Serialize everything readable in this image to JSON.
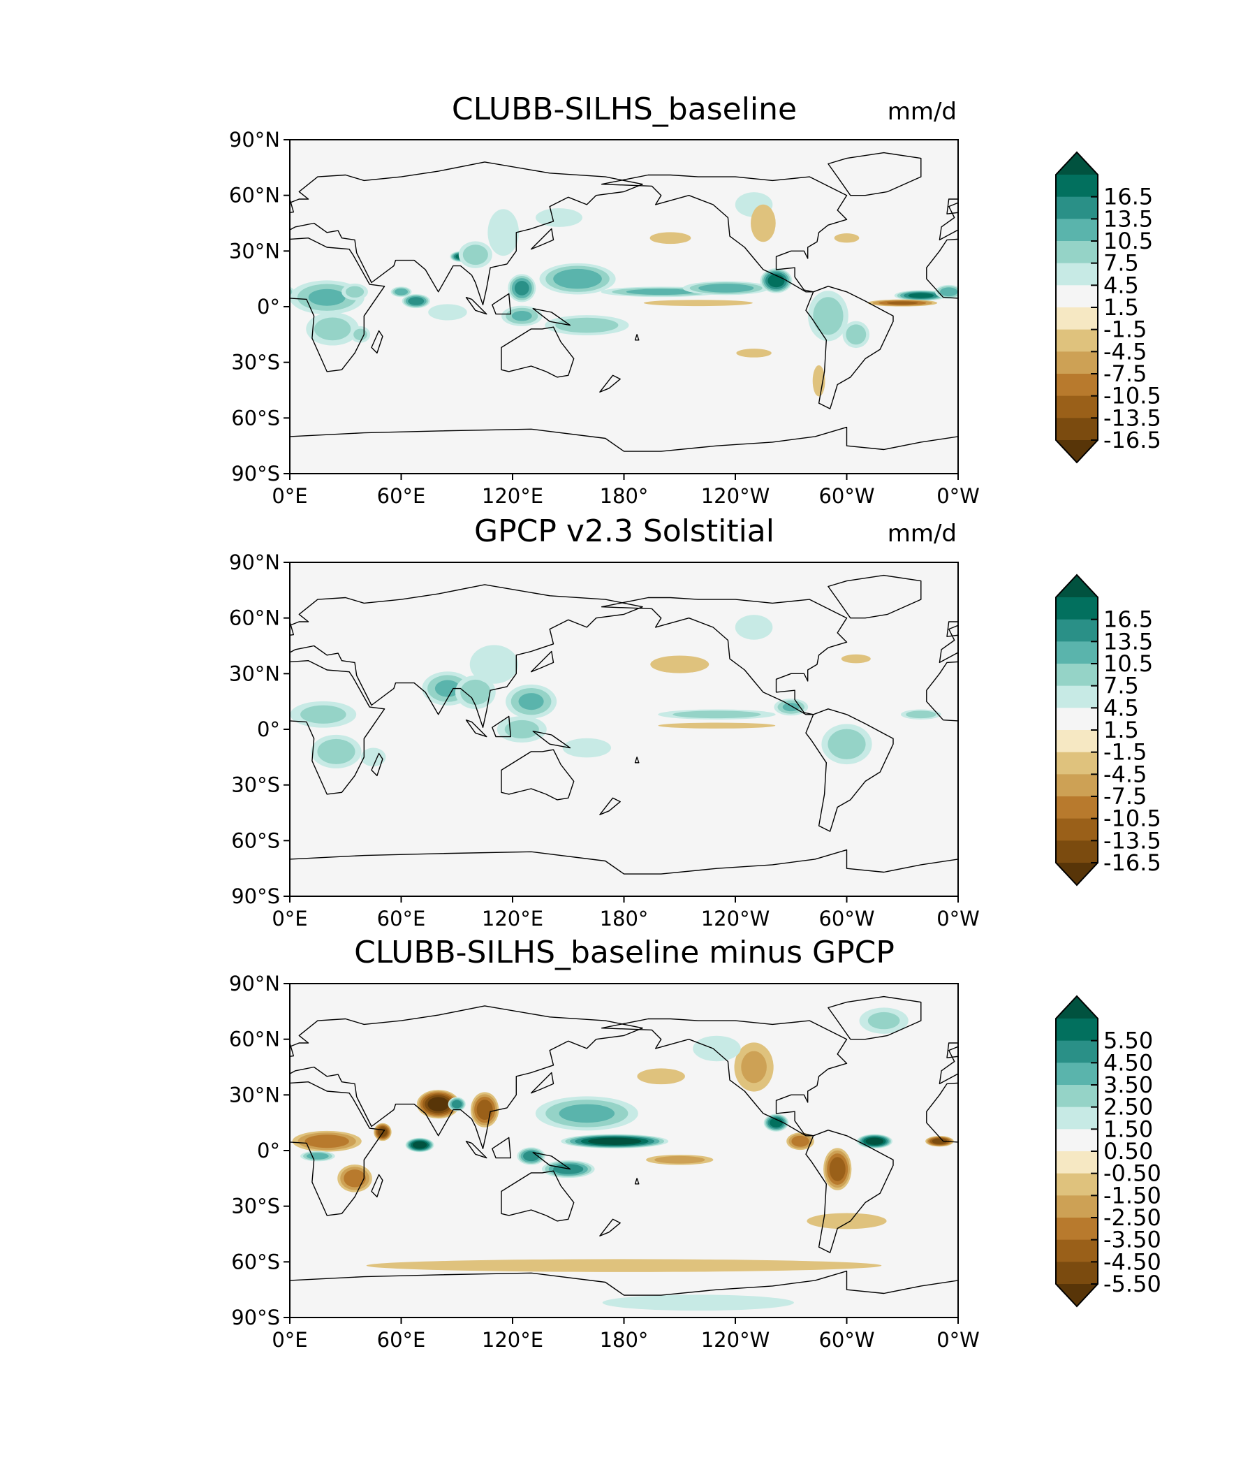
{
  "chart_data": [
    {
      "type": "heatmap",
      "title": "CLUBB-SILHS_baseline",
      "units": "mm/d",
      "xticks": [
        "0°E",
        "60°E",
        "120°E",
        "180°",
        "120°W",
        "60°W",
        "0°W"
      ],
      "yticks": [
        "90°N",
        "60°N",
        "30°N",
        "0°",
        "30°S",
        "60°S",
        "90°S"
      ],
      "xlim": [
        0,
        360
      ],
      "ylim": [
        -90,
        90
      ],
      "colorbar": {
        "ticks": [
          "16.5",
          "13.5",
          "10.5",
          "7.5",
          "4.5",
          "1.5",
          "-1.5",
          "-4.5",
          "-7.5",
          "-10.5",
          "-13.5",
          "-16.5"
        ],
        "min": -16.5,
        "max": 16.5,
        "extend": "both",
        "colors": [
          "#583508",
          "#7b4b0f",
          "#9a6019",
          "#b87a2d",
          "#cda155",
          "#dfc27d",
          "#f6e8c3",
          "#f5f5f5",
          "#c7eae5",
          "#95d3c7",
          "#5ab4ac",
          "#2a9087",
          "#02705e",
          "#01523f"
        ]
      },
      "blobs": [
        {
          "lon": 20,
          "lat": 5,
          "rlon": 22,
          "rlat": 10,
          "v": 7
        },
        {
          "lon": 35,
          "lat": 8,
          "rlon": 8,
          "rlat": 5,
          "v": 5
        },
        {
          "lon": 23,
          "lat": -12,
          "rlon": 16,
          "rlat": 10,
          "v": 5
        },
        {
          "lon": 38,
          "lat": -15,
          "rlon": 6,
          "rlat": 5,
          "v": 5
        },
        {
          "lon": 60,
          "lat": 8,
          "rlon": 6,
          "rlat": 3,
          "v": 9
        },
        {
          "lon": 68,
          "lat": 3,
          "rlon": 8,
          "rlat": 4,
          "v": 12
        },
        {
          "lon": 85,
          "lat": -3,
          "rlon": 12,
          "rlat": 5,
          "v": 4
        },
        {
          "lon": 92,
          "lat": 27,
          "rlon": 6,
          "rlat": 3,
          "v": 14
        },
        {
          "lon": 100,
          "lat": 28,
          "rlon": 10,
          "rlat": 8,
          "v": 6
        },
        {
          "lon": 115,
          "lat": 40,
          "rlon": 10,
          "rlat": 15,
          "v": 3
        },
        {
          "lon": 145,
          "lat": 48,
          "rlon": 15,
          "rlat": 6,
          "v": 3
        },
        {
          "lon": 155,
          "lat": 15,
          "rlon": 22,
          "rlat": 9,
          "v": 9
        },
        {
          "lon": 125,
          "lat": 10,
          "rlon": 8,
          "rlat": 8,
          "v": 11
        },
        {
          "lon": 125,
          "lat": -5,
          "rlon": 12,
          "rlat": 6,
          "v": 7
        },
        {
          "lon": 160,
          "lat": -10,
          "rlon": 25,
          "rlat": 6,
          "v": 6
        },
        {
          "lon": 200,
          "lat": 8,
          "rlon": 35,
          "rlat": 3,
          "v": 8
        },
        {
          "lon": 235,
          "lat": 10,
          "rlon": 25,
          "rlat": 4,
          "v": 9
        },
        {
          "lon": 262,
          "lat": 14,
          "rlon": 9,
          "rlat": 7,
          "v": 15
        },
        {
          "lon": 250,
          "lat": 55,
          "rlon": 12,
          "rlat": 8,
          "v": 3
        },
        {
          "lon": 290,
          "lat": -5,
          "rlon": 12,
          "rlat": 15,
          "v": 6
        },
        {
          "lon": 305,
          "lat": -15,
          "rlon": 8,
          "rlat": 8,
          "v": 6
        },
        {
          "lon": 340,
          "lat": 6,
          "rlon": 15,
          "rlat": 3,
          "v": 14
        },
        {
          "lon": 355,
          "lat": 8,
          "rlon": 8,
          "rlat": 4,
          "v": 9
        },
        {
          "lon": 330,
          "lat": 2,
          "rlon": 20,
          "rlat": 2,
          "v": -10
        },
        {
          "lon": 220,
          "lat": 2,
          "rlon": 35,
          "rlat": 2,
          "v": -3
        },
        {
          "lon": 255,
          "lat": 45,
          "rlon": 8,
          "rlat": 12,
          "v": -3
        },
        {
          "lon": 300,
          "lat": 37,
          "rlon": 8,
          "rlat": 3,
          "v": -3
        },
        {
          "lon": 205,
          "lat": 37,
          "rlon": 14,
          "rlat": 4,
          "v": -2
        },
        {
          "lon": 285,
          "lat": -40,
          "rlon": 4,
          "rlat": 10,
          "v": -3
        },
        {
          "lon": 250,
          "lat": -25,
          "rlon": 12,
          "rlat": 3,
          "v": -2
        }
      ]
    },
    {
      "type": "heatmap",
      "title": "GPCP v2.3 Solstitial",
      "units": "mm/d",
      "xticks": [
        "0°E",
        "60°E",
        "120°E",
        "180°",
        "120°W",
        "60°W",
        "0°W"
      ],
      "yticks": [
        "90°N",
        "60°N",
        "30°N",
        "0°",
        "30°S",
        "60°S",
        "90°S"
      ],
      "xlim": [
        0,
        360
      ],
      "ylim": [
        -90,
        90
      ],
      "colorbar": {
        "ticks": [
          "16.5",
          "13.5",
          "10.5",
          "7.5",
          "4.5",
          "1.5",
          "-1.5",
          "-4.5",
          "-7.5",
          "-10.5",
          "-13.5",
          "-16.5"
        ],
        "min": -16.5,
        "max": 16.5,
        "extend": "both",
        "colors": [
          "#583508",
          "#7b4b0f",
          "#9a6019",
          "#b87a2d",
          "#cda155",
          "#dfc27d",
          "#f6e8c3",
          "#f5f5f5",
          "#c7eae5",
          "#95d3c7",
          "#5ab4ac",
          "#2a9087",
          "#02705e",
          "#01523f"
        ]
      },
      "blobs": [
        {
          "lon": 18,
          "lat": 8,
          "rlon": 20,
          "rlat": 8,
          "v": 5
        },
        {
          "lon": 25,
          "lat": -12,
          "rlon": 15,
          "rlat": 10,
          "v": 6
        },
        {
          "lon": 45,
          "lat": -15,
          "rlon": 8,
          "rlat": 6,
          "v": 3
        },
        {
          "lon": 85,
          "lat": 22,
          "rlon": 15,
          "rlat": 10,
          "v": 7
        },
        {
          "lon": 100,
          "lat": 20,
          "rlon": 12,
          "rlat": 10,
          "v": 6
        },
        {
          "lon": 110,
          "lat": 35,
          "rlon": 15,
          "rlat": 12,
          "v": 4
        },
        {
          "lon": 130,
          "lat": 15,
          "rlon": 15,
          "rlat": 10,
          "v": 7
        },
        {
          "lon": 125,
          "lat": 0,
          "rlon": 15,
          "rlat": 8,
          "v": 5
        },
        {
          "lon": 160,
          "lat": -10,
          "rlon": 15,
          "rlat": 6,
          "v": 4
        },
        {
          "lon": 230,
          "lat": 8,
          "rlon": 35,
          "rlat": 3,
          "v": 6
        },
        {
          "lon": 270,
          "lat": 12,
          "rlon": 10,
          "rlat": 5,
          "v": 7
        },
        {
          "lon": 300,
          "lat": -8,
          "rlon": 15,
          "rlat": 12,
          "v": 6
        },
        {
          "lon": 340,
          "lat": 8,
          "rlon": 12,
          "rlat": 3,
          "v": 6
        },
        {
          "lon": 250,
          "lat": 55,
          "rlon": 12,
          "rlat": 8,
          "v": 3
        },
        {
          "lon": 210,
          "lat": 35,
          "rlon": 20,
          "rlat": 6,
          "v": -2
        },
        {
          "lon": 305,
          "lat": 38,
          "rlon": 10,
          "rlat": 3,
          "v": -2
        },
        {
          "lon": 230,
          "lat": 2,
          "rlon": 40,
          "rlat": 2,
          "v": -2
        }
      ]
    },
    {
      "type": "heatmap",
      "title": "CLUBB-SILHS_baseline minus GPCP",
      "units": "",
      "xticks": [
        "0°E",
        "60°E",
        "120°E",
        "180°",
        "120°W",
        "60°W",
        "0°W"
      ],
      "yticks": [
        "90°N",
        "60°N",
        "30°N",
        "0°",
        "30°S",
        "60°S",
        "90°S"
      ],
      "xlim": [
        0,
        360
      ],
      "ylim": [
        -90,
        90
      ],
      "colorbar": {
        "ticks": [
          "5.50",
          "4.50",
          "3.50",
          "2.50",
          "1.50",
          "0.50",
          "-0.50",
          "-1.50",
          "-2.50",
          "-3.50",
          "-4.50",
          "-5.50"
        ],
        "min": -5.5,
        "max": 5.5,
        "extend": "both",
        "colors": [
          "#583508",
          "#7b4b0f",
          "#9a6019",
          "#b87a2d",
          "#cda155",
          "#dfc27d",
          "#f6e8c3",
          "#f5f5f5",
          "#c7eae5",
          "#95d3c7",
          "#5ab4ac",
          "#2a9087",
          "#02705e",
          "#01523f"
        ]
      },
      "blobs": [
        {
          "lon": 80,
          "lat": 25,
          "rlon": 12,
          "rlat": 8,
          "v": -6
        },
        {
          "lon": 105,
          "lat": 22,
          "rlon": 8,
          "rlat": 10,
          "v": -4
        },
        {
          "lon": 70,
          "lat": 3,
          "rlon": 8,
          "rlat": 4,
          "v": 6
        },
        {
          "lon": 175,
          "lat": 5,
          "rlon": 30,
          "rlat": 4,
          "v": 6
        },
        {
          "lon": 160,
          "lat": 20,
          "rlon": 30,
          "rlat": 10,
          "v": 2.5
        },
        {
          "lon": 150,
          "lat": -10,
          "rlon": 15,
          "rlat": 5,
          "v": 4
        },
        {
          "lon": 130,
          "lat": -3,
          "rlon": 8,
          "rlat": 5,
          "v": 4
        },
        {
          "lon": 262,
          "lat": 15,
          "rlon": 7,
          "rlat": 5,
          "v": 5
        },
        {
          "lon": 315,
          "lat": 5,
          "rlon": 10,
          "rlat": 4,
          "v": 6
        },
        {
          "lon": 350,
          "lat": 5,
          "rlon": 8,
          "rlat": 3,
          "v": -5
        },
        {
          "lon": 295,
          "lat": -10,
          "rlon": 8,
          "rlat": 12,
          "v": -4
        },
        {
          "lon": 275,
          "lat": 5,
          "rlon": 8,
          "rlat": 5,
          "v": -3
        },
        {
          "lon": 20,
          "lat": 5,
          "rlon": 20,
          "rlat": 6,
          "v": -3
        },
        {
          "lon": 15,
          "lat": -3,
          "rlon": 10,
          "rlat": 3,
          "v": 3
        },
        {
          "lon": 35,
          "lat": -15,
          "rlon": 10,
          "rlat": 8,
          "v": -3
        },
        {
          "lon": 50,
          "lat": 10,
          "rlon": 5,
          "rlat": 5,
          "v": -5
        },
        {
          "lon": 90,
          "lat": 25,
          "rlon": 5,
          "rlat": 4,
          "v": 4
        },
        {
          "lon": 210,
          "lat": -5,
          "rlon": 20,
          "rlat": 3,
          "v": -2
        },
        {
          "lon": 180,
          "lat": -62,
          "rlon": 160,
          "rlat": 4,
          "v": -1.3
        },
        {
          "lon": 220,
          "lat": -82,
          "rlon": 60,
          "rlat": 5,
          "v": 1.2
        },
        {
          "lon": 320,
          "lat": 70,
          "rlon": 15,
          "rlat": 8,
          "v": 1.5
        },
        {
          "lon": 250,
          "lat": 45,
          "rlon": 12,
          "rlat": 15,
          "v": -1.5
        },
        {
          "lon": 230,
          "lat": 55,
          "rlon": 15,
          "rlat": 8,
          "v": 1.2
        },
        {
          "lon": 200,
          "lat": 40,
          "rlon": 15,
          "rlat": 5,
          "v": -1.2
        },
        {
          "lon": 300,
          "lat": -38,
          "rlon": 25,
          "rlat": 5,
          "v": -1.2
        }
      ]
    }
  ]
}
